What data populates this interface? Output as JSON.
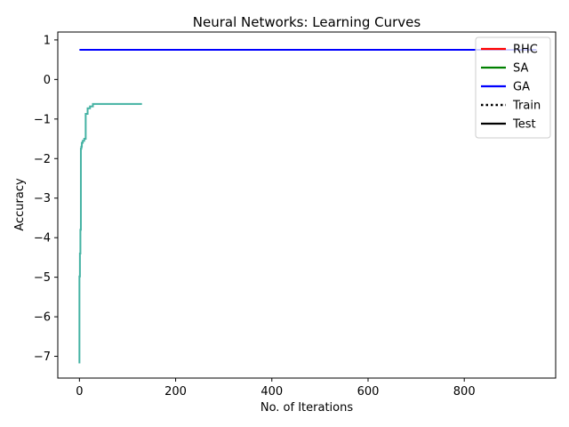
{
  "chart_data": {
    "type": "line",
    "title": "Neural Networks: Learning Curves",
    "xlabel": "No. of Iterations",
    "ylabel": "Accuracy",
    "xlim": [
      -45,
      990
    ],
    "ylim": [
      -7.55,
      1.2
    ],
    "xticks": [
      0,
      200,
      400,
      600,
      800
    ],
    "yticks": [
      -7,
      -6,
      -5,
      -4,
      -3,
      -2,
      -1,
      0,
      1
    ],
    "grid": false,
    "legend": {
      "placement": "top-right",
      "entries": [
        {
          "label": "RHC",
          "color": "#ff0000",
          "style": "solid"
        },
        {
          "label": "SA",
          "color": "#008000",
          "style": "solid"
        },
        {
          "label": "GA",
          "color": "#0000ff",
          "style": "solid"
        },
        {
          "label": "Train",
          "color": "#000000",
          "style": "dotted"
        },
        {
          "label": "Test",
          "color": "#000000",
          "style": "solid"
        }
      ]
    },
    "series": [
      {
        "color": "#0000ff",
        "style": "solid",
        "x": [
          0,
          950
        ],
        "y": [
          0.75,
          0.75
        ]
      },
      {
        "color": "#44b2a3",
        "style": "step",
        "x": [
          0,
          0,
          1,
          1,
          2,
          2,
          3,
          3,
          4,
          5,
          7,
          10,
          13,
          15,
          17,
          20,
          22,
          25,
          28,
          30,
          60,
          130
        ],
        "y": [
          -7.18,
          -4.98,
          -4.98,
          -4.4,
          -4.2,
          -3.8,
          -3.6,
          -1.75,
          -1.7,
          -1.6,
          -1.55,
          -1.5,
          -0.87,
          -0.87,
          -0.73,
          -0.73,
          -0.68,
          -0.68,
          -0.62,
          -0.62,
          -0.62,
          -0.62
        ]
      }
    ]
  }
}
